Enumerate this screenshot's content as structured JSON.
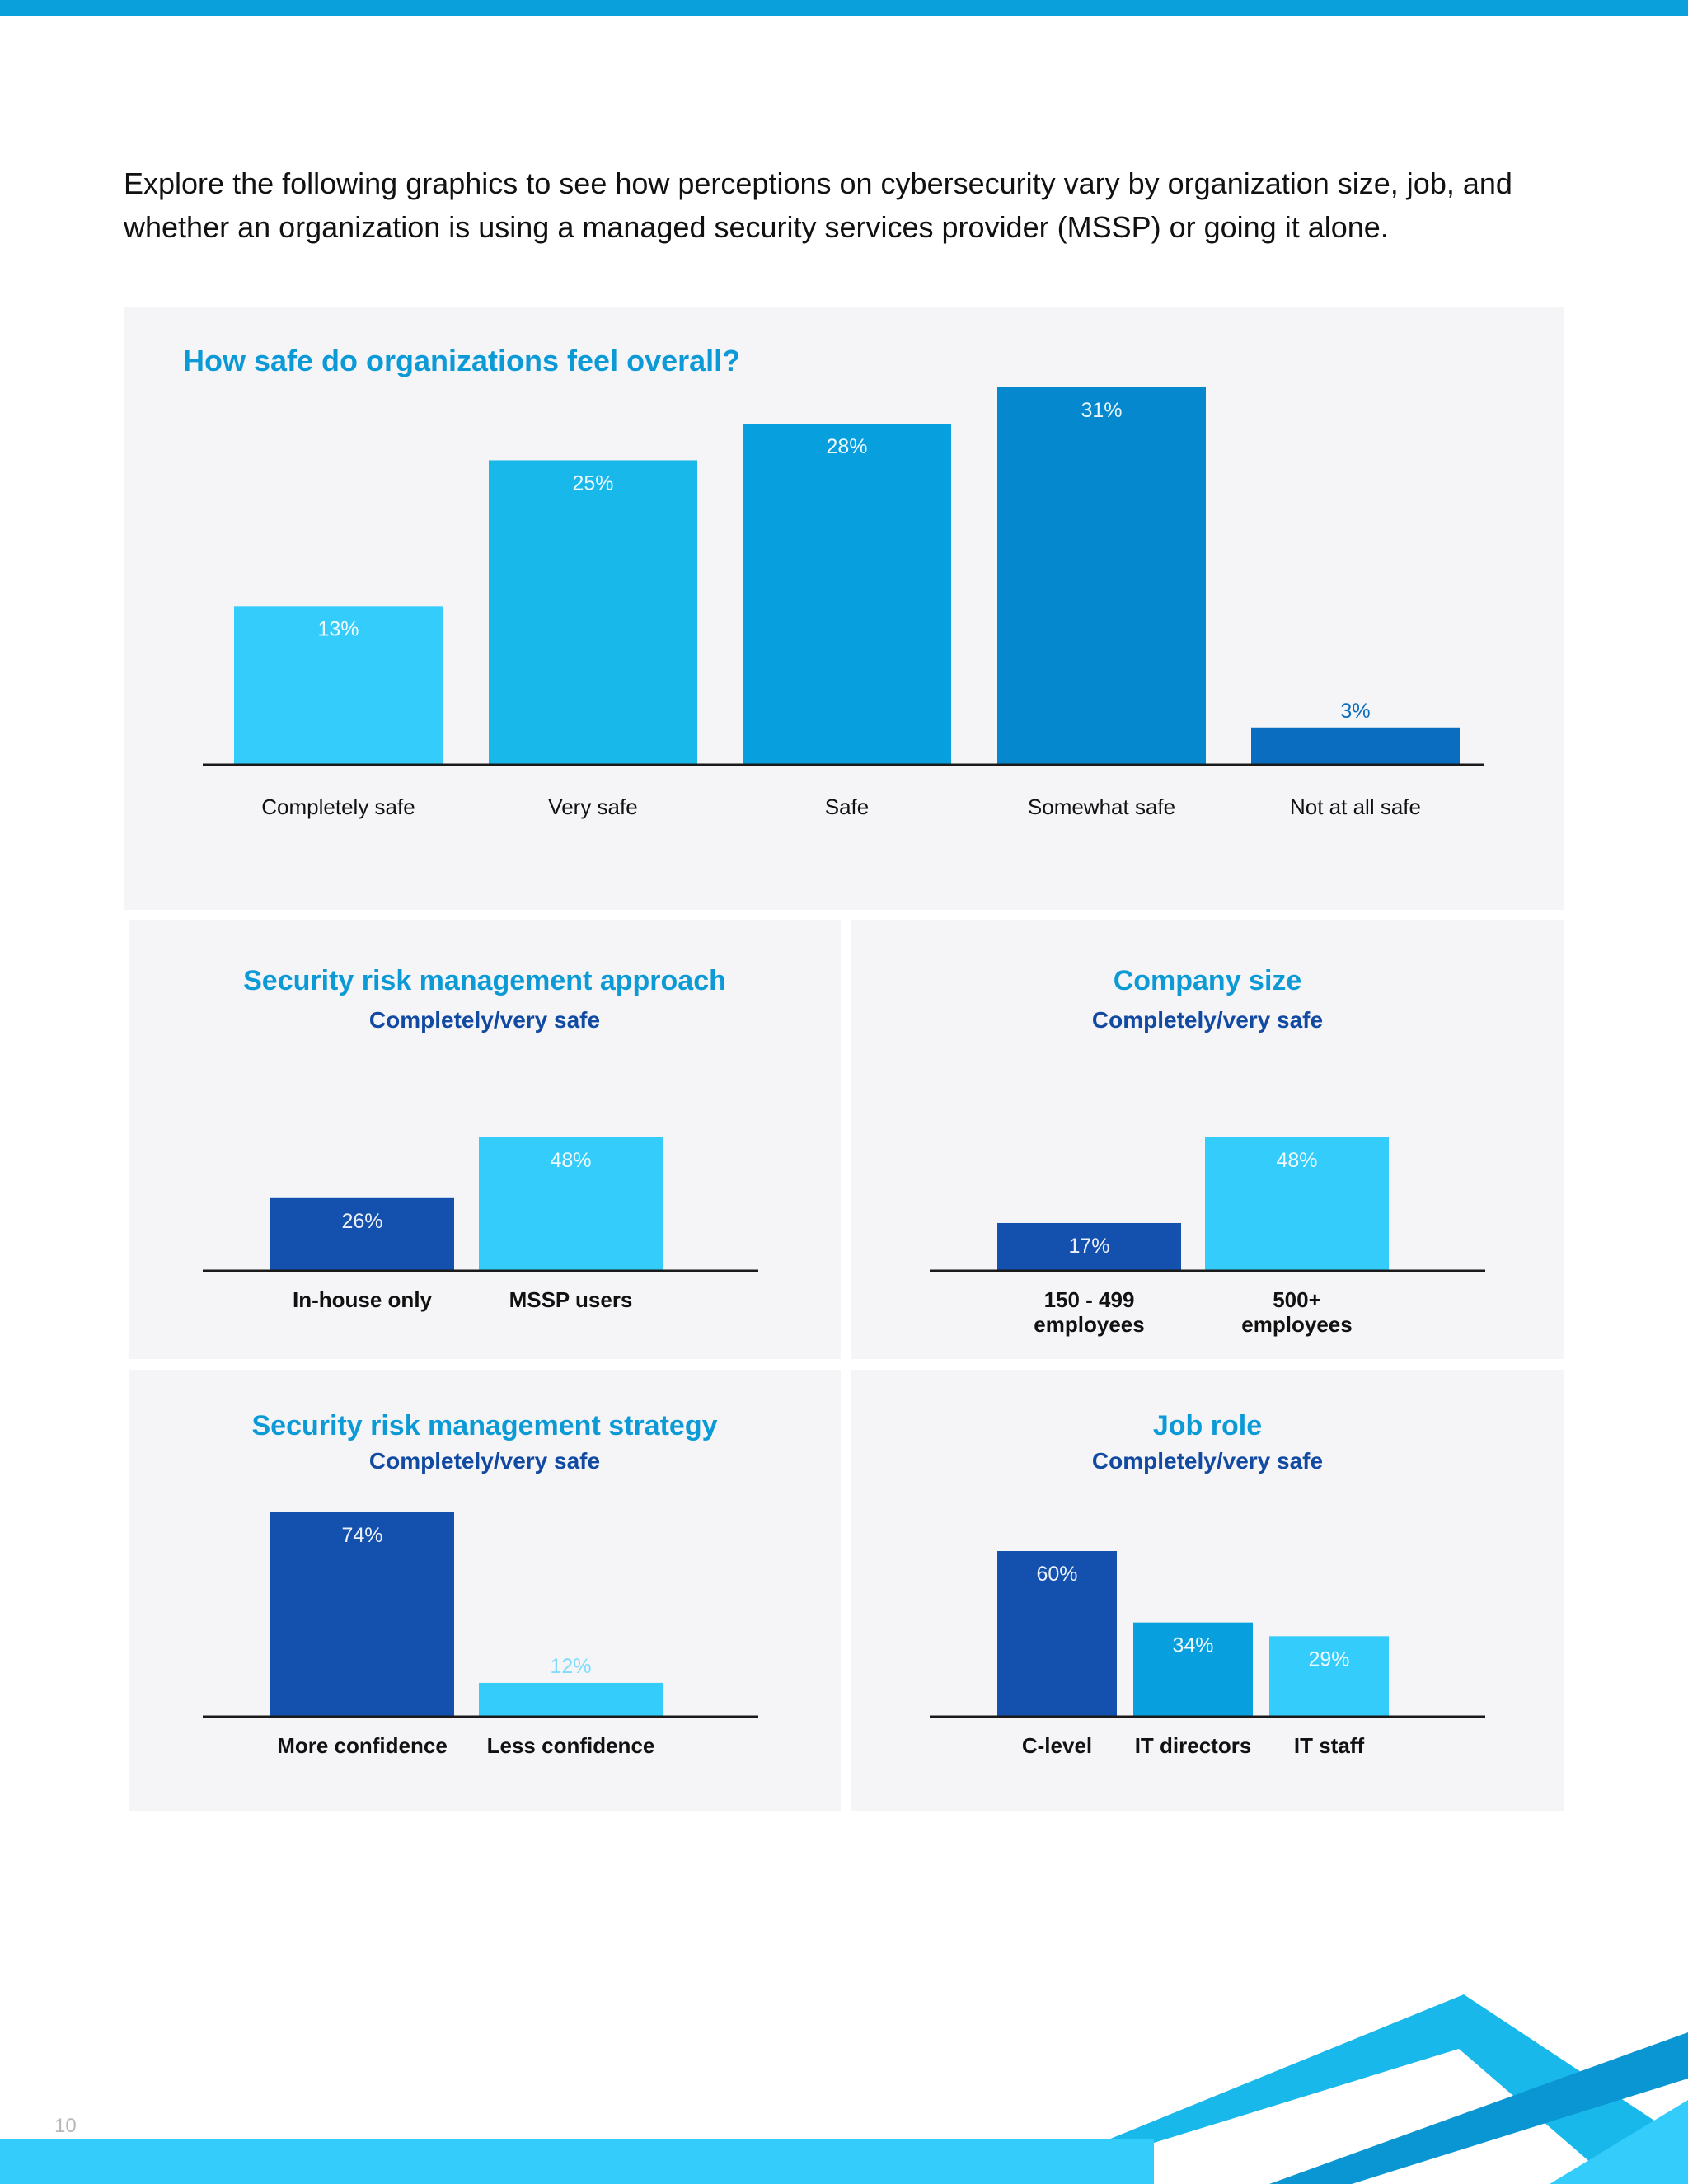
{
  "intro": "Explore the following graphics to see how perceptions on cybersecurity vary by organization size, job, and whether an organization is using a managed security services provider (MSSP) or going it alone.",
  "page_number": "10",
  "colors": {
    "light": "#33ccfb",
    "sky": "#19b8eb",
    "blue": "#079fde",
    "mid": "#0588cd",
    "deep": "#0a6dbf",
    "navy": "#1450ad",
    "title": "#0b9ad5",
    "subtitle": "#124aa2"
  },
  "chart_data": [
    {
      "type": "bar",
      "title": "How safe do organizations feel overall?",
      "categories": [
        "Completely safe",
        "Very safe",
        "Safe",
        "Somewhat safe",
        "Not at all safe"
      ],
      "values": [
        13,
        25,
        28,
        31,
        3
      ],
      "labels": [
        "13%",
        "25%",
        "28%",
        "31%",
        "3%"
      ],
      "colors": [
        "#33ccfb",
        "#19b8eb",
        "#079fde",
        "#0588cd",
        "#0a6dbf"
      ],
      "ylim": [
        0,
        31
      ],
      "unit": "%"
    },
    {
      "type": "bar",
      "title": "Security risk management approach",
      "subtitle": "Completely/very safe",
      "categories": [
        "In-house only",
        "MSSP users"
      ],
      "values": [
        26,
        48
      ],
      "labels": [
        "26%",
        "48%"
      ],
      "colors": [
        "#1450ad",
        "#33ccfb"
      ],
      "ylim": [
        0,
        48
      ],
      "unit": "%"
    },
    {
      "type": "bar",
      "title": "Company size",
      "subtitle": "Completely/very safe",
      "categories": [
        "150 - 499 employees",
        "500+ employees"
      ],
      "values": [
        17,
        48
      ],
      "labels": [
        "17%",
        "48%"
      ],
      "colors": [
        "#1450ad",
        "#33ccfb"
      ],
      "ylim": [
        0,
        48
      ],
      "unit": "%"
    },
    {
      "type": "bar",
      "title": "Security risk management strategy",
      "subtitle": "Completely/very safe",
      "categories": [
        "More confidence",
        "Less confidence"
      ],
      "values": [
        74,
        12
      ],
      "labels": [
        "74%",
        "12%"
      ],
      "colors": [
        "#1450ad",
        "#33ccfb"
      ],
      "ylim": [
        0,
        74
      ],
      "unit": "%"
    },
    {
      "type": "bar",
      "title": "Job role",
      "subtitle": "Completely/very safe",
      "categories": [
        "C-level",
        "IT directors",
        "IT staff"
      ],
      "values": [
        60,
        34,
        29
      ],
      "labels": [
        "60%",
        "34%",
        "29%"
      ],
      "colors": [
        "#1450ad",
        "#079fde",
        "#33ccfb"
      ],
      "ylim": [
        0,
        60
      ],
      "unit": "%"
    }
  ]
}
